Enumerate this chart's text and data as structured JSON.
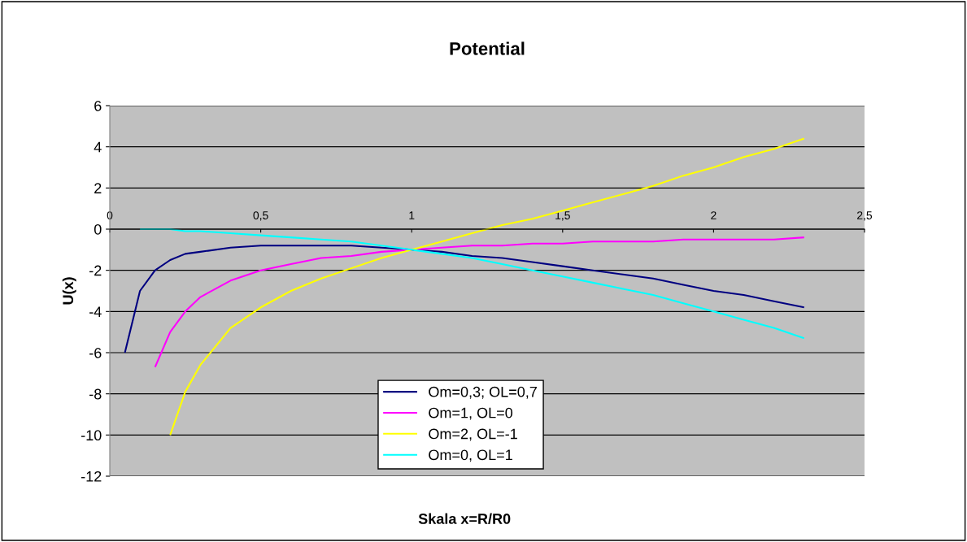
{
  "chart_data": {
    "type": "line",
    "title": "Potential",
    "xlabel": "Skala x=R/R0",
    "ylabel": "U(x)",
    "xlim": [
      0,
      2.5
    ],
    "xticks": [
      0,
      {
        "value": 0.5,
        "label": "0,5"
      },
      1,
      {
        "value": 1.5,
        "label": "1,5"
      },
      2,
      {
        "value": 2.5,
        "label": "2,5"
      }
    ],
    "ylim": [
      -12,
      6
    ],
    "yticks": [
      -12,
      -10,
      -8,
      -6,
      -4,
      -2,
      0,
      2,
      4,
      6
    ],
    "grid": "y",
    "legend": "bottom",
    "marker": "none",
    "line_style": "solid",
    "series": [
      {
        "name": "Om=0,3; OL=0,7",
        "color": "#000080",
        "x": [
          0.05,
          0.1,
          0.15,
          0.2,
          0.25,
          0.3,
          0.4,
          0.5,
          0.6,
          0.7,
          0.8,
          0.9,
          1.0,
          1.1,
          1.2,
          1.3,
          1.4,
          1.5,
          1.6,
          1.7,
          1.8,
          1.9,
          2.0,
          2.1,
          2.2,
          2.3
        ],
        "values": [
          -6.0,
          -3.0,
          -2.0,
          -1.5,
          -1.2,
          -1.1,
          -0.9,
          -0.8,
          -0.8,
          -0.8,
          -0.8,
          -0.9,
          -1.0,
          -1.1,
          -1.3,
          -1.4,
          -1.6,
          -1.8,
          -2.0,
          -2.2,
          -2.4,
          -2.7,
          -3.0,
          -3.2,
          -3.5,
          -3.8
        ]
      },
      {
        "name": "Om=1, OL=0",
        "color": "#ff00ff",
        "x": [
          0.15,
          0.2,
          0.25,
          0.3,
          0.4,
          0.5,
          0.6,
          0.7,
          0.8,
          0.9,
          1.0,
          1.1,
          1.2,
          1.3,
          1.4,
          1.5,
          1.6,
          1.7,
          1.8,
          1.9,
          2.0,
          2.1,
          2.2,
          2.3
        ],
        "values": [
          -6.7,
          -5.0,
          -4.0,
          -3.3,
          -2.5,
          -2.0,
          -1.7,
          -1.4,
          -1.3,
          -1.1,
          -1.0,
          -0.9,
          -0.8,
          -0.8,
          -0.7,
          -0.7,
          -0.6,
          -0.6,
          -0.6,
          -0.5,
          -0.5,
          -0.5,
          -0.5,
          -0.4
        ]
      },
      {
        "name": "Om=2, OL=-1",
        "color": "#ffff00",
        "x": [
          0.2,
          0.25,
          0.3,
          0.4,
          0.5,
          0.6,
          0.7,
          0.8,
          0.9,
          1.0,
          1.1,
          1.2,
          1.3,
          1.4,
          1.5,
          1.6,
          1.7,
          1.8,
          1.9,
          2.0,
          2.1,
          2.2,
          2.3
        ],
        "values": [
          -10.0,
          -7.9,
          -6.6,
          -4.8,
          -3.8,
          -3.0,
          -2.4,
          -1.9,
          -1.4,
          -1.0,
          -0.6,
          -0.2,
          0.2,
          0.5,
          0.9,
          1.3,
          1.7,
          2.1,
          2.6,
          3.0,
          3.5,
          3.9,
          4.4
        ]
      },
      {
        "name": "Om=0, OL=1",
        "color": "#00ffff",
        "x": [
          0.1,
          0.15,
          0.2,
          0.25,
          0.3,
          0.4,
          0.5,
          0.6,
          0.7,
          0.8,
          0.9,
          1.0,
          1.1,
          1.2,
          1.3,
          1.4,
          1.5,
          1.6,
          1.7,
          1.8,
          1.9,
          2.0,
          2.1,
          2.2,
          2.3
        ],
        "values": [
          0.0,
          0.0,
          0.0,
          -0.1,
          -0.1,
          -0.2,
          -0.3,
          -0.4,
          -0.5,
          -0.6,
          -0.8,
          -1.0,
          -1.2,
          -1.4,
          -1.7,
          -2.0,
          -2.3,
          -2.6,
          -2.9,
          -3.2,
          -3.6,
          -4.0,
          -4.4,
          -4.8,
          -5.3
        ]
      }
    ]
  }
}
